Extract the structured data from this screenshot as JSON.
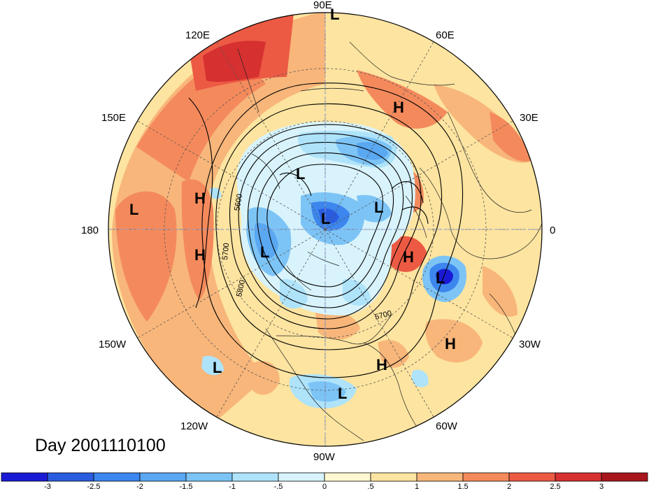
{
  "title": "Day 2001110100",
  "longitude_labels": [
    {
      "key": "lon_90e",
      "text": "90E"
    },
    {
      "key": "lon_60e",
      "text": "60E"
    },
    {
      "key": "lon_30e",
      "text": "30E"
    },
    {
      "key": "lon_0",
      "text": "0"
    },
    {
      "key": "lon_30w",
      "text": "30W"
    },
    {
      "key": "lon_60w",
      "text": "60W"
    },
    {
      "key": "lon_90w",
      "text": "90W"
    },
    {
      "key": "lon_120w",
      "text": "120W"
    },
    {
      "key": "lon_150w",
      "text": "150W"
    },
    {
      "key": "lon_180",
      "text": "180"
    },
    {
      "key": "lon_150e",
      "text": "150E"
    },
    {
      "key": "lon_120e",
      "text": "120E"
    }
  ],
  "pressure_centers": [
    {
      "type": "L"
    },
    {
      "type": "H"
    },
    {
      "type": "L"
    },
    {
      "type": "L"
    },
    {
      "type": "L"
    },
    {
      "type": "L"
    },
    {
      "type": "H"
    },
    {
      "type": "H"
    },
    {
      "type": "L"
    },
    {
      "type": "H"
    },
    {
      "type": "L"
    },
    {
      "type": "H"
    },
    {
      "type": "H"
    },
    {
      "type": "L"
    },
    {
      "type": "L"
    }
  ],
  "contour_labels": [
    "5600",
    "5700",
    "5800",
    "5700"
  ],
  "colorbar": {
    "ticks": [
      "-3",
      "-2.5",
      "-2",
      "-1.5",
      "-1",
      "-.5",
      "0",
      ".5",
      "1",
      "1.5",
      "2",
      "2.5",
      "3"
    ],
    "colors": [
      "#1a1ad6",
      "#2a5ce0",
      "#3c86ee",
      "#5aa7f2",
      "#7dc4f6",
      "#aee3fa",
      "#d8f3fb",
      "#fff8d0",
      "#fde4a0",
      "#f8b67a",
      "#f48a5c",
      "#ec5a44",
      "#d63030",
      "#a8161c"
    ]
  }
}
